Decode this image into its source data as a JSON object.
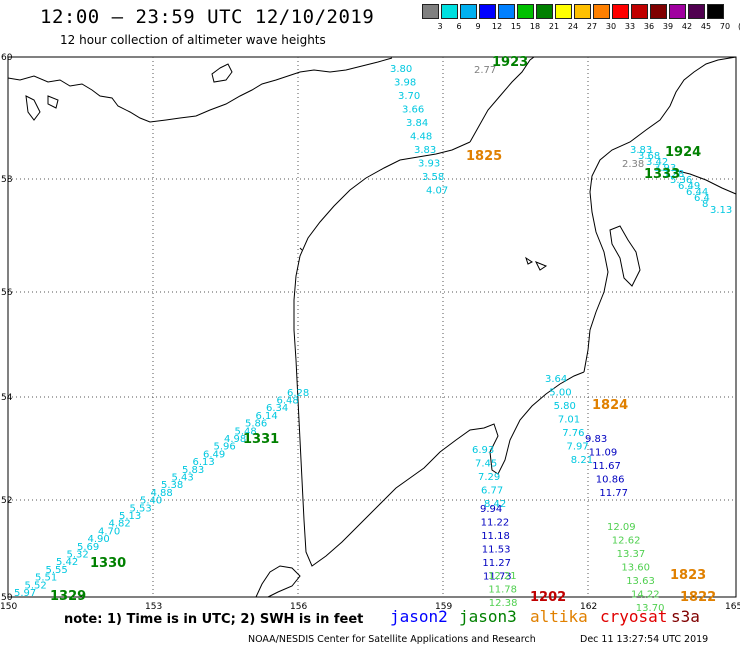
{
  "header": {
    "title": "12:00 – 23:59 UTC 12/10/2019",
    "subtitle": "12 hour collection of altimeter wave heights"
  },
  "colorbar": {
    "colors": [
      "#808080",
      "#00e0e0",
      "#00b0f0",
      "#0000ff",
      "#0080ff",
      "#00c000",
      "#008000",
      "#ffff00",
      "#ffc000",
      "#ff8000",
      "#ff0000",
      "#c00000",
      "#800000",
      "#a000a0",
      "#500050",
      "#000000"
    ],
    "labels": [
      "3",
      "6",
      "9",
      "12",
      "15",
      "18",
      "21",
      "24",
      "27",
      "30",
      "33",
      "36",
      "39",
      "42",
      "45",
      "70",
      "(ft)"
    ]
  },
  "axes": {
    "lat_labels": [
      "60",
      "58",
      "56",
      "54",
      "52",
      "50"
    ],
    "lon_labels": [
      "150",
      "153",
      "156",
      "159",
      "162",
      "165"
    ]
  },
  "tracks": [
    {
      "color": "#00c8e0",
      "items": [
        "5.97",
        "5.52",
        "5.51",
        "5.55",
        "5.42",
        "5.32",
        "5.69",
        "4.90",
        "4.70",
        "4.82",
        "5.13",
        "5.53",
        "5.40",
        "4.88",
        "5.38",
        "5.43",
        "5.83",
        "6.13",
        "6.49",
        "5.96",
        "4.98",
        "5.48",
        "5.86",
        "6.14",
        "6.34",
        "6.48",
        "6.28"
      ]
    },
    {
      "color": "#00c8e0",
      "items": [
        "3.80",
        "3.98",
        "3.70",
        "3.66",
        "3.84",
        "4.48",
        "3.83",
        "3.93",
        "3.58",
        "4.07"
      ]
    },
    {
      "color": "#00c8e0",
      "items": [
        "3.83",
        "3.68",
        "3.42",
        "3.93",
        "3.28",
        "5.36",
        "6.49",
        "6.44",
        "6.4",
        "8",
        "3.13"
      ]
    },
    {
      "color": "#00c8e0",
      "items": [
        "3.64",
        "5.00",
        "5.80",
        "7.01",
        "7.76",
        "7.97",
        "8.21"
      ]
    },
    {
      "color": "#00c8e0",
      "items": [
        "6.93",
        "7.45",
        "7.29",
        "6.77",
        "8.42"
      ]
    },
    {
      "color": "#0000c0",
      "items": [
        "9.94",
        "11.22",
        "11.18",
        "11.53",
        "11.27",
        "11.73"
      ]
    },
    {
      "color": "#0000c0",
      "items": [
        "9.83",
        "11.09",
        "11.67",
        "10.86",
        "11.77"
      ]
    },
    {
      "color": "#50d050",
      "items": [
        "12.09",
        "12.62",
        "13.37",
        "13.60",
        "13.63",
        "14.22",
        "13.70"
      ]
    },
    {
      "color": "#50d050",
      "items": [
        "12.21",
        "11.78",
        "12.38"
      ]
    },
    {
      "color": "#808080",
      "items": [
        "2.77",
        "2.38"
      ]
    }
  ],
  "time_labels": [
    {
      "text": "1923",
      "color": "#008000"
    },
    {
      "text": "1825",
      "color": "#e08000"
    },
    {
      "text": "1924",
      "color": "#008000"
    },
    {
      "text": "1333",
      "color": "#008000"
    },
    {
      "text": "1824",
      "color": "#e08000"
    },
    {
      "text": "1331",
      "color": "#008000"
    },
    {
      "text": "1330",
      "color": "#008000"
    },
    {
      "text": "1329",
      "color": "#008000"
    },
    {
      "text": "1823",
      "color": "#e08000"
    },
    {
      "text": "1822",
      "color": "#e08000"
    },
    {
      "text": "1202",
      "color": "#c00000"
    }
  ],
  "footer": {
    "note": "note: 1) Time is in UTC; 2) SWH is in feet",
    "satellites": [
      {
        "name": "jason2",
        "color": "#0000ff"
      },
      {
        "name": "jason3",
        "color": "#008000"
      },
      {
        "name": "altika",
        "color": "#e08000"
      },
      {
        "name": "cryosat",
        "color": "#e00000"
      },
      {
        "name": "s3a",
        "color": "#800000"
      }
    ],
    "credit": "NOAA/NESDIS Center for Satellite Applications and Research",
    "timestamp": "Dec 11 13:27:54 UTC 2019"
  }
}
